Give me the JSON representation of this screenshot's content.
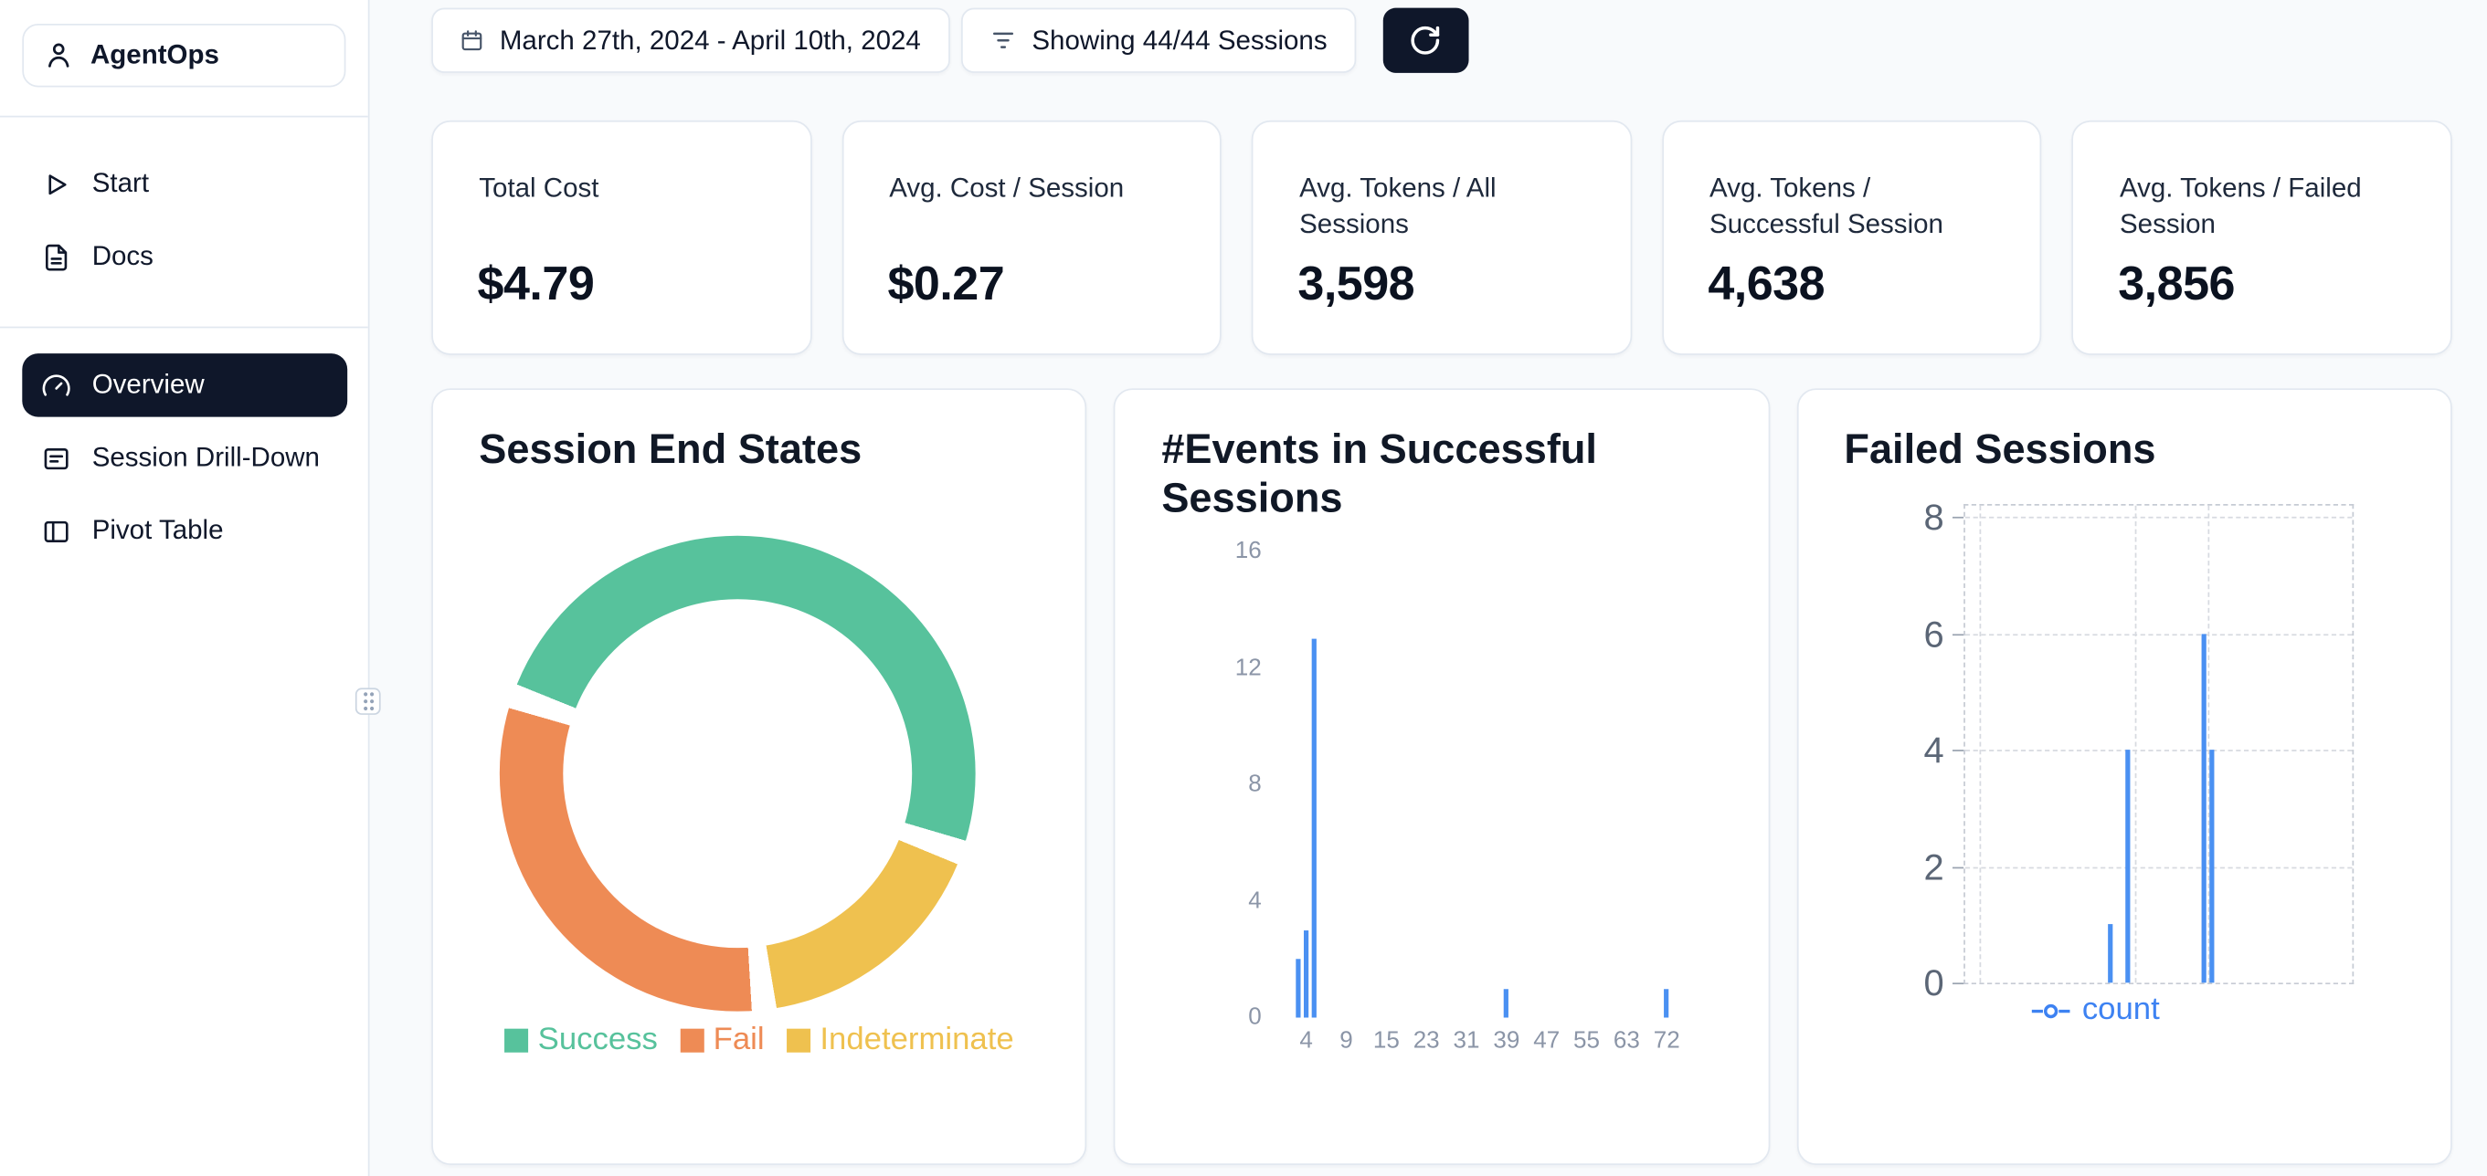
{
  "app": {
    "name": "AgentOps"
  },
  "theme": {
    "accent_dark": "#0f172a",
    "card_border": "#e2e8f0",
    "chart_blue": "#4a90f2"
  },
  "sidebar": {
    "logo_label": "AgentOps",
    "items": [
      {
        "label": "Start"
      },
      {
        "label": "Docs"
      },
      {
        "label": "Overview",
        "active": true
      },
      {
        "label": "Session Drill-Down"
      },
      {
        "label": "Pivot Table"
      }
    ]
  },
  "topbar": {
    "date_range": "March 27th, 2024 - April 10th, 2024",
    "sessions_filter": "Showing 44/44 Sessions"
  },
  "stats": [
    {
      "label": "Total Cost",
      "value": "$4.79"
    },
    {
      "label": "Avg. Cost / Session",
      "value": "$0.27"
    },
    {
      "label": "Avg. Tokens / All Sessions",
      "value": "3,598"
    },
    {
      "label": "Avg. Tokens / Successful Session",
      "value": "4,638"
    },
    {
      "label": "Avg. Tokens / Failed Session",
      "value": "3,856"
    }
  ],
  "chart_data": [
    {
      "type": "pie",
      "style": "donut",
      "title": "Session End States",
      "legend_position": "bottom",
      "start_angle_deg": 292,
      "gap_deg": 6,
      "draw_order": [
        0,
        2,
        1
      ],
      "segments": [
        {
          "label": "Success",
          "share": 51,
          "color": "#57c29c"
        },
        {
          "label": "Fail",
          "share": 32,
          "color": "#ee8b55"
        },
        {
          "label": "Indeterminate",
          "share": 17,
          "color": "#efc14f"
        }
      ]
    },
    {
      "type": "bar",
      "title": "#Events in Successful Sessions",
      "xlabel": "",
      "ylabel": "",
      "x_ticks": [
        4,
        9,
        15,
        23,
        31,
        39,
        47,
        55,
        63,
        72
      ],
      "y_ticks": [
        0,
        4,
        8,
        12,
        16
      ],
      "ylim": [
        0,
        16
      ],
      "bar_color": "#4a90f2",
      "bars": [
        {
          "x": 3,
          "count": 2
        },
        {
          "x": 4,
          "count": 3
        },
        {
          "x": 5,
          "count": 13
        },
        {
          "x": 39,
          "count": 1
        },
        {
          "x": 72,
          "count": 1
        }
      ]
    },
    {
      "type": "line",
      "title": "Failed Sessions",
      "y_ticks": [
        0,
        2,
        4,
        6,
        8
      ],
      "ylim": [
        0,
        8
      ],
      "grid": "dashed",
      "legend_position": "bottom",
      "series": [
        {
          "name": "count",
          "color": "#4a90f2",
          "points": [
            {
              "x_frac": 0.378,
              "count": 1
            },
            {
              "x_frac": 0.423,
              "count": 4
            },
            {
              "x_frac": 0.618,
              "count": 6
            },
            {
              "x_frac": 0.638,
              "count": 4
            }
          ]
        }
      ]
    }
  ]
}
